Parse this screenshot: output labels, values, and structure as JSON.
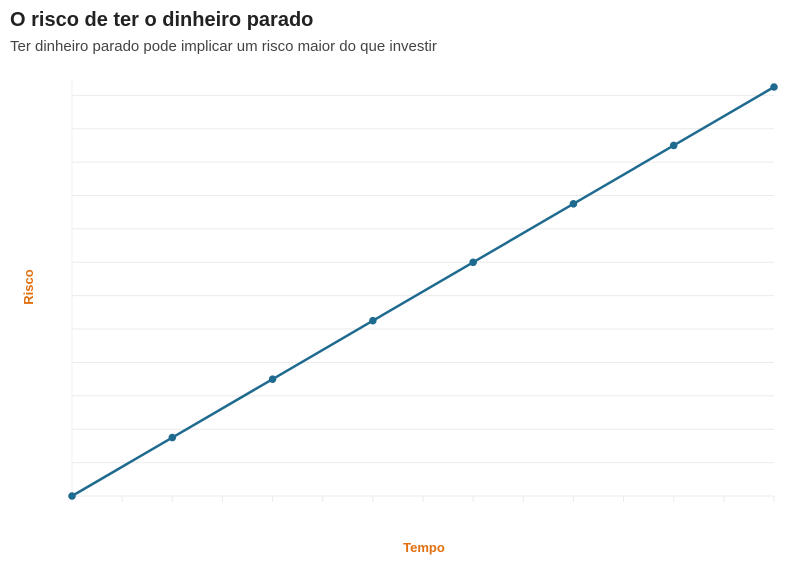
{
  "chart_data": {
    "type": "line",
    "title": "O risco de ter o dinheiro parado",
    "subtitle": "Ter dinheiro parado pode implicar um risco maior do que investir",
    "xlabel": "Tempo",
    "ylabel": "Risco",
    "x": [
      0,
      1,
      2,
      3,
      4,
      5,
      6,
      7
    ],
    "series": [
      {
        "name": "Risco",
        "values": [
          0,
          1.75,
          3.5,
          5.25,
          7,
          8.75,
          10.5,
          12.25
        ]
      }
    ],
    "xlim": [
      0,
      7
    ],
    "ylim": [
      0,
      12.25
    ],
    "grid": true,
    "line_color": "#1f6a8f",
    "label_color": "#e07010"
  }
}
